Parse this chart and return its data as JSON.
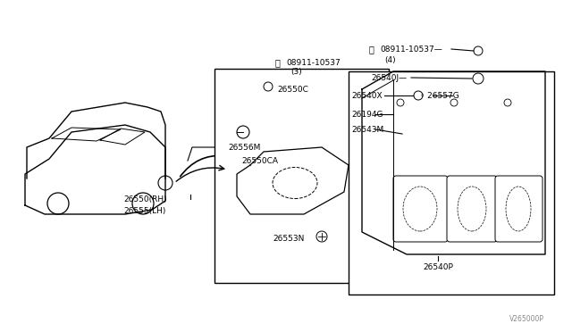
{
  "bg_color": "#ffffff",
  "line_color": "#000000",
  "light_gray": "#cccccc",
  "gray": "#888888",
  "diagram_ref": "V265000P",
  "parts": {
    "left_box_label_top": "N 08911-10537\n(3)",
    "left_box_parts": [
      "26550C",
      "26556M",
      "26550CA",
      "26553N"
    ],
    "car_label": "26550(RH)\n26555(LH)",
    "right_box_label_top1": "N 08911-10537",
    "right_box_label_top2": "(4)",
    "right_box_parts": [
      "26540J",
      "26540X",
      "26557G",
      "26194G",
      "26543M",
      "26540P"
    ]
  },
  "font_size_label": 6.5,
  "font_size_ref": 6.0
}
